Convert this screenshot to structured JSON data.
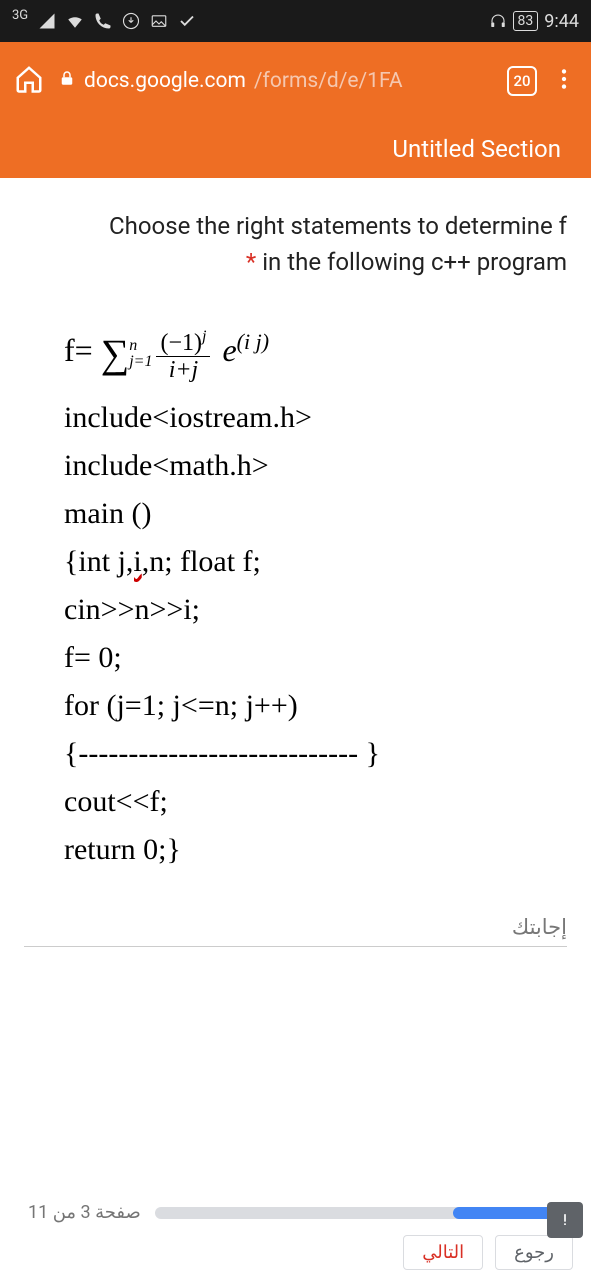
{
  "statusbar": {
    "net_gen": "3G",
    "battery_pct": "83",
    "time": "9:44"
  },
  "appbar": {
    "url_primary": "docs.google.com",
    "url_path": "/forms/d/e/1FA",
    "tab_count": "20"
  },
  "section": {
    "title": "Untitled Section"
  },
  "question": {
    "line1": "Choose the right statements to determine f",
    "line2_pre": "*",
    "line2": " in the following c++ program"
  },
  "formula": {
    "f_eq": "f= ",
    "sigma_top": "n",
    "sigma_bot": "j=1",
    "frac_top": "(−1)",
    "frac_top_sup": "j",
    "frac_bot": "i+j",
    "e": " e",
    "eij": "(i j)"
  },
  "code": {
    "l1": "include<iostream.h>",
    "l2": "include<math.h>",
    "l3": "main ()",
    "l4a": "{int ",
    "l4b": "j,i",
    "l4c": ",n; float f;",
    "l5": "cin>>n>>i;",
    "l6": "f= 0;",
    "l7": "for (j=1; j<=n; j++)",
    "l8": "{---------------------------- }",
    "l9": "cout<<f;",
    "l10": "return 0;}"
  },
  "answer": {
    "label": "إجابتك"
  },
  "footer": {
    "page_label": "صفحة 3 من 11",
    "progress_pct": 27,
    "next": "التالي",
    "back": "رجوع"
  }
}
